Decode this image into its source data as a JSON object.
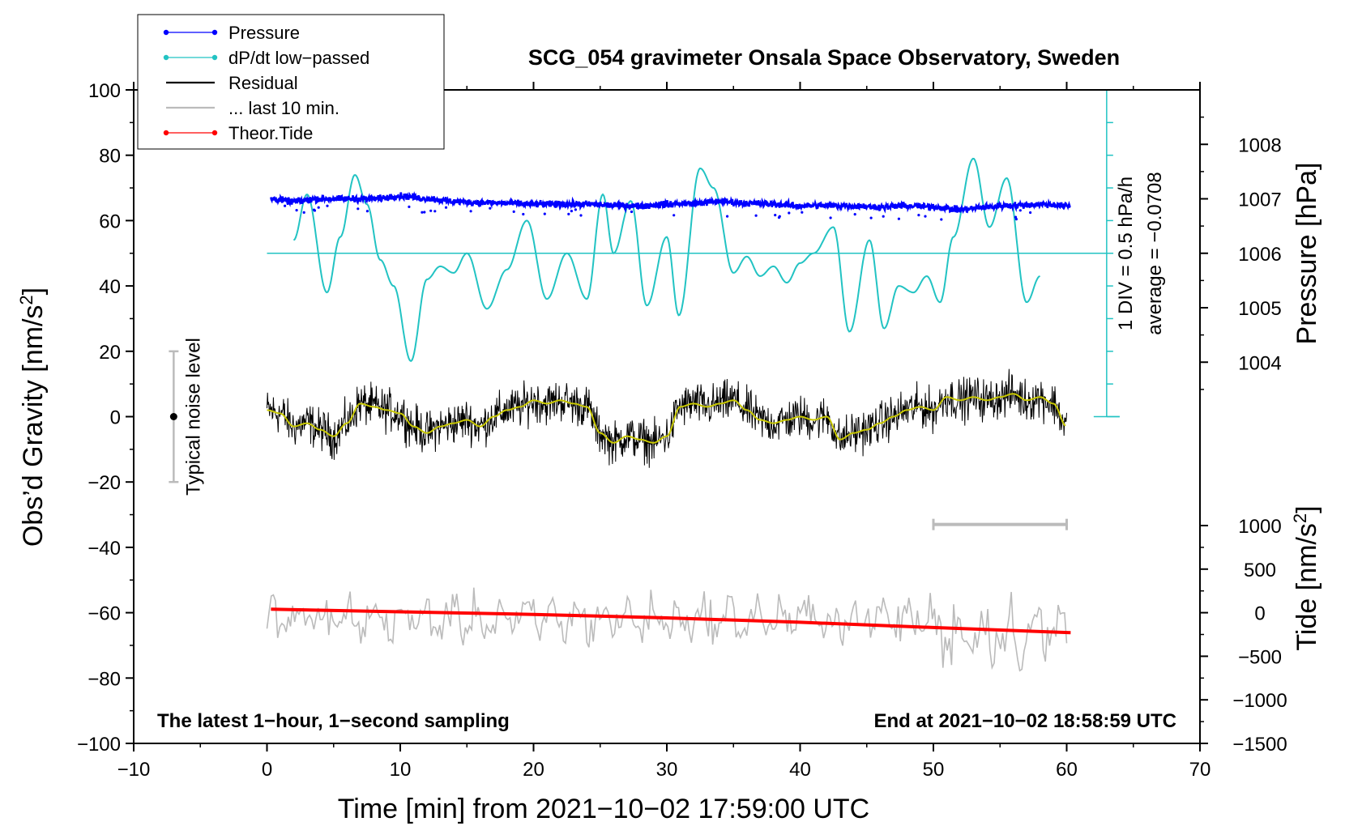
{
  "chart_data": {
    "type": "line",
    "title": "SCG_054 gravimeter Onsala Space Observatory, Sweden",
    "xlabel": "Time [min] from 2021−10−02 17:59:00 UTC",
    "ylabel_main": "Obs’d Gravity [nm/s",
    "ylabel_main_sup": "2",
    "ylabel_main_end": "]",
    "ylabel_pressure": "Pressure [hPa]",
    "ylabel_tide": "Tide [nm/s",
    "ylabel_tide_sup": "2",
    "ylabel_tide_end": "]",
    "xlim": [
      -10,
      70
    ],
    "ylim": [
      -100,
      100
    ],
    "x_ticks": [
      {
        "v": -10,
        "label": "−10"
      },
      {
        "v": 0,
        "label": "0"
      },
      {
        "v": 10,
        "label": "10"
      },
      {
        "v": 20,
        "label": "20"
      },
      {
        "v": 30,
        "label": "30"
      },
      {
        "v": 40,
        "label": "40"
      },
      {
        "v": 50,
        "label": "50"
      },
      {
        "v": 60,
        "label": "60"
      },
      {
        "v": 70,
        "label": "70"
      }
    ],
    "y_ticks": [
      {
        "v": 100,
        "label": "100"
      },
      {
        "v": 80,
        "label": "80"
      },
      {
        "v": 60,
        "label": "60"
      },
      {
        "v": 40,
        "label": "40"
      },
      {
        "v": 20,
        "label": "20"
      },
      {
        "v": 0,
        "label": "0"
      },
      {
        "v": -20,
        "label": "−20"
      },
      {
        "v": -40,
        "label": "−40"
      },
      {
        "v": -60,
        "label": "−60"
      },
      {
        "v": -80,
        "label": "−80"
      },
      {
        "v": -100,
        "label": "−100"
      }
    ],
    "pressure_axis": {
      "range": [
        1003,
        1009
      ],
      "maps_to_gravity": [
        0,
        100
      ],
      "ticks": [
        {
          "v": 1008,
          "label": "1008"
        },
        {
          "v": 1007,
          "label": "1007"
        },
        {
          "v": 1006,
          "label": "1006"
        },
        {
          "v": 1005,
          "label": "1005"
        },
        {
          "v": 1004,
          "label": "1004"
        }
      ]
    },
    "tide_axis": {
      "range": [
        -1500,
        1000
      ],
      "maps_to_gravity": [
        -100,
        -33.33
      ],
      "ticks": [
        {
          "v": 1000,
          "label": "1000"
        },
        {
          "v": 500,
          "label": "500"
        },
        {
          "v": 0,
          "label": "0"
        },
        {
          "v": -500,
          "label": "−500"
        },
        {
          "v": -1000,
          "label": "−1000"
        },
        {
          "v": -1500,
          "label": "−1500"
        }
      ]
    },
    "dpdt_scale": {
      "baseline_gravity": 50,
      "div_gravity": 10,
      "label_div": "1 DIV = 0.5 hPa/h",
      "label_avg": "average = −0.0708"
    },
    "legend": [
      {
        "label": "Pressure",
        "color": "#0000ff",
        "marker": true
      },
      {
        "label": "dP/dt low−passed",
        "color": "#22c3c3",
        "marker": true
      },
      {
        "label": "Residual",
        "color": "#000000",
        "marker": false
      },
      {
        "label": "... last 10 min.",
        "color": "#bbbbbb",
        "marker": false
      },
      {
        "label": "Theor.Tide",
        "color": "#ff0000",
        "marker": true
      }
    ],
    "noise_bar": {
      "x": -7,
      "center": 0,
      "low": -20,
      "high": 20,
      "label": "Typical noise level"
    },
    "last10_bar": {
      "x_start": 50,
      "x_end": 60,
      "y": -33
    },
    "annotation_left": "The latest 1−hour, 1−second sampling",
    "annotation_right": "End at 2021−10−02 18:58:59 UTC",
    "series": [
      {
        "name": "Pressure",
        "color": "#0000ff",
        "axis": "pressure",
        "x": [
          0.3,
          2,
          4,
          6,
          8,
          10,
          12,
          14,
          16,
          18,
          20,
          22,
          24,
          26,
          28,
          30,
          32,
          34,
          36,
          38,
          40,
          42,
          44,
          46,
          48,
          50,
          52,
          54,
          56,
          58,
          60.3
        ],
        "values": [
          1007.0,
          1006.95,
          1007.0,
          1007.0,
          1007.0,
          1007.05,
          1007.0,
          1006.95,
          1006.93,
          1006.92,
          1006.9,
          1006.9,
          1006.9,
          1006.88,
          1006.87,
          1006.9,
          1006.92,
          1006.95,
          1006.92,
          1006.9,
          1006.87,
          1006.88,
          1006.87,
          1006.85,
          1006.87,
          1006.85,
          1006.8,
          1006.85,
          1006.88,
          1006.9,
          1006.87
        ]
      },
      {
        "name": "dP/dt low-passed",
        "color": "#22c3c3",
        "axis": "gravity",
        "x": [
          2,
          3,
          4.5,
          5.5,
          6.6,
          7.5,
          8.5,
          9.5,
          10.8,
          12,
          13,
          14,
          15,
          16.5,
          18,
          19.5,
          21,
          22.5,
          24,
          25.2,
          26,
          27.3,
          28.5,
          30,
          30.9,
          32.5,
          33.5,
          35,
          36,
          37,
          38,
          39,
          40,
          41,
          42.5,
          43.7,
          45.2,
          46.3,
          47.4,
          48.5,
          49.5,
          50.5,
          51.5,
          53,
          54.2,
          55.5,
          57,
          58
        ],
        "values": [
          54,
          68,
          38,
          55,
          74,
          65,
          48,
          40,
          17,
          42,
          46,
          44,
          50,
          33,
          45,
          60,
          36,
          50,
          36,
          68,
          50,
          66,
          34,
          55,
          31,
          76,
          70,
          44,
          49,
          43,
          46,
          41,
          47,
          50,
          58,
          26,
          54,
          27,
          40,
          38,
          43,
          35,
          55,
          79,
          58,
          73,
          35,
          43
        ]
      },
      {
        "name": "Residual (smoothed)",
        "color": "#c8c800",
        "axis": "gravity",
        "x": [
          0,
          1,
          2,
          3,
          4,
          5,
          6,
          7,
          8,
          9,
          10,
          11,
          12,
          13,
          14,
          15,
          16,
          17,
          18,
          19,
          20,
          21,
          22,
          23,
          24,
          25,
          26,
          27,
          28,
          29,
          30,
          31,
          32,
          33,
          34,
          35,
          36,
          37,
          38,
          39,
          40,
          41,
          42,
          43,
          44,
          45,
          46,
          47,
          48,
          49,
          50,
          51,
          52,
          53,
          54,
          55,
          56,
          57,
          58,
          59,
          60
        ],
        "values": [
          2,
          1,
          -3,
          -2,
          -4,
          -6,
          -2,
          4,
          3,
          2,
          1,
          -3,
          -5,
          -3,
          -2,
          -1,
          -3,
          0,
          2,
          3,
          5,
          4,
          5,
          4,
          3,
          -5,
          -8,
          -6,
          -7,
          -8,
          -6,
          3,
          4,
          3,
          4,
          5,
          2,
          -1,
          -2,
          -1,
          0,
          -1,
          0,
          -7,
          -5,
          -4,
          -2,
          0,
          2,
          3,
          2,
          6,
          5,
          6,
          5,
          6,
          7,
          5,
          6,
          4,
          -3
        ]
      },
      {
        "name": "Theor.Tide",
        "color": "#ff0000",
        "axis": "tide",
        "x": [
          0.3,
          10,
          20,
          30,
          40,
          50,
          60.3
        ],
        "values": [
          40,
          10,
          -20,
          -60,
          -110,
          -170,
          -230
        ]
      }
    ]
  }
}
